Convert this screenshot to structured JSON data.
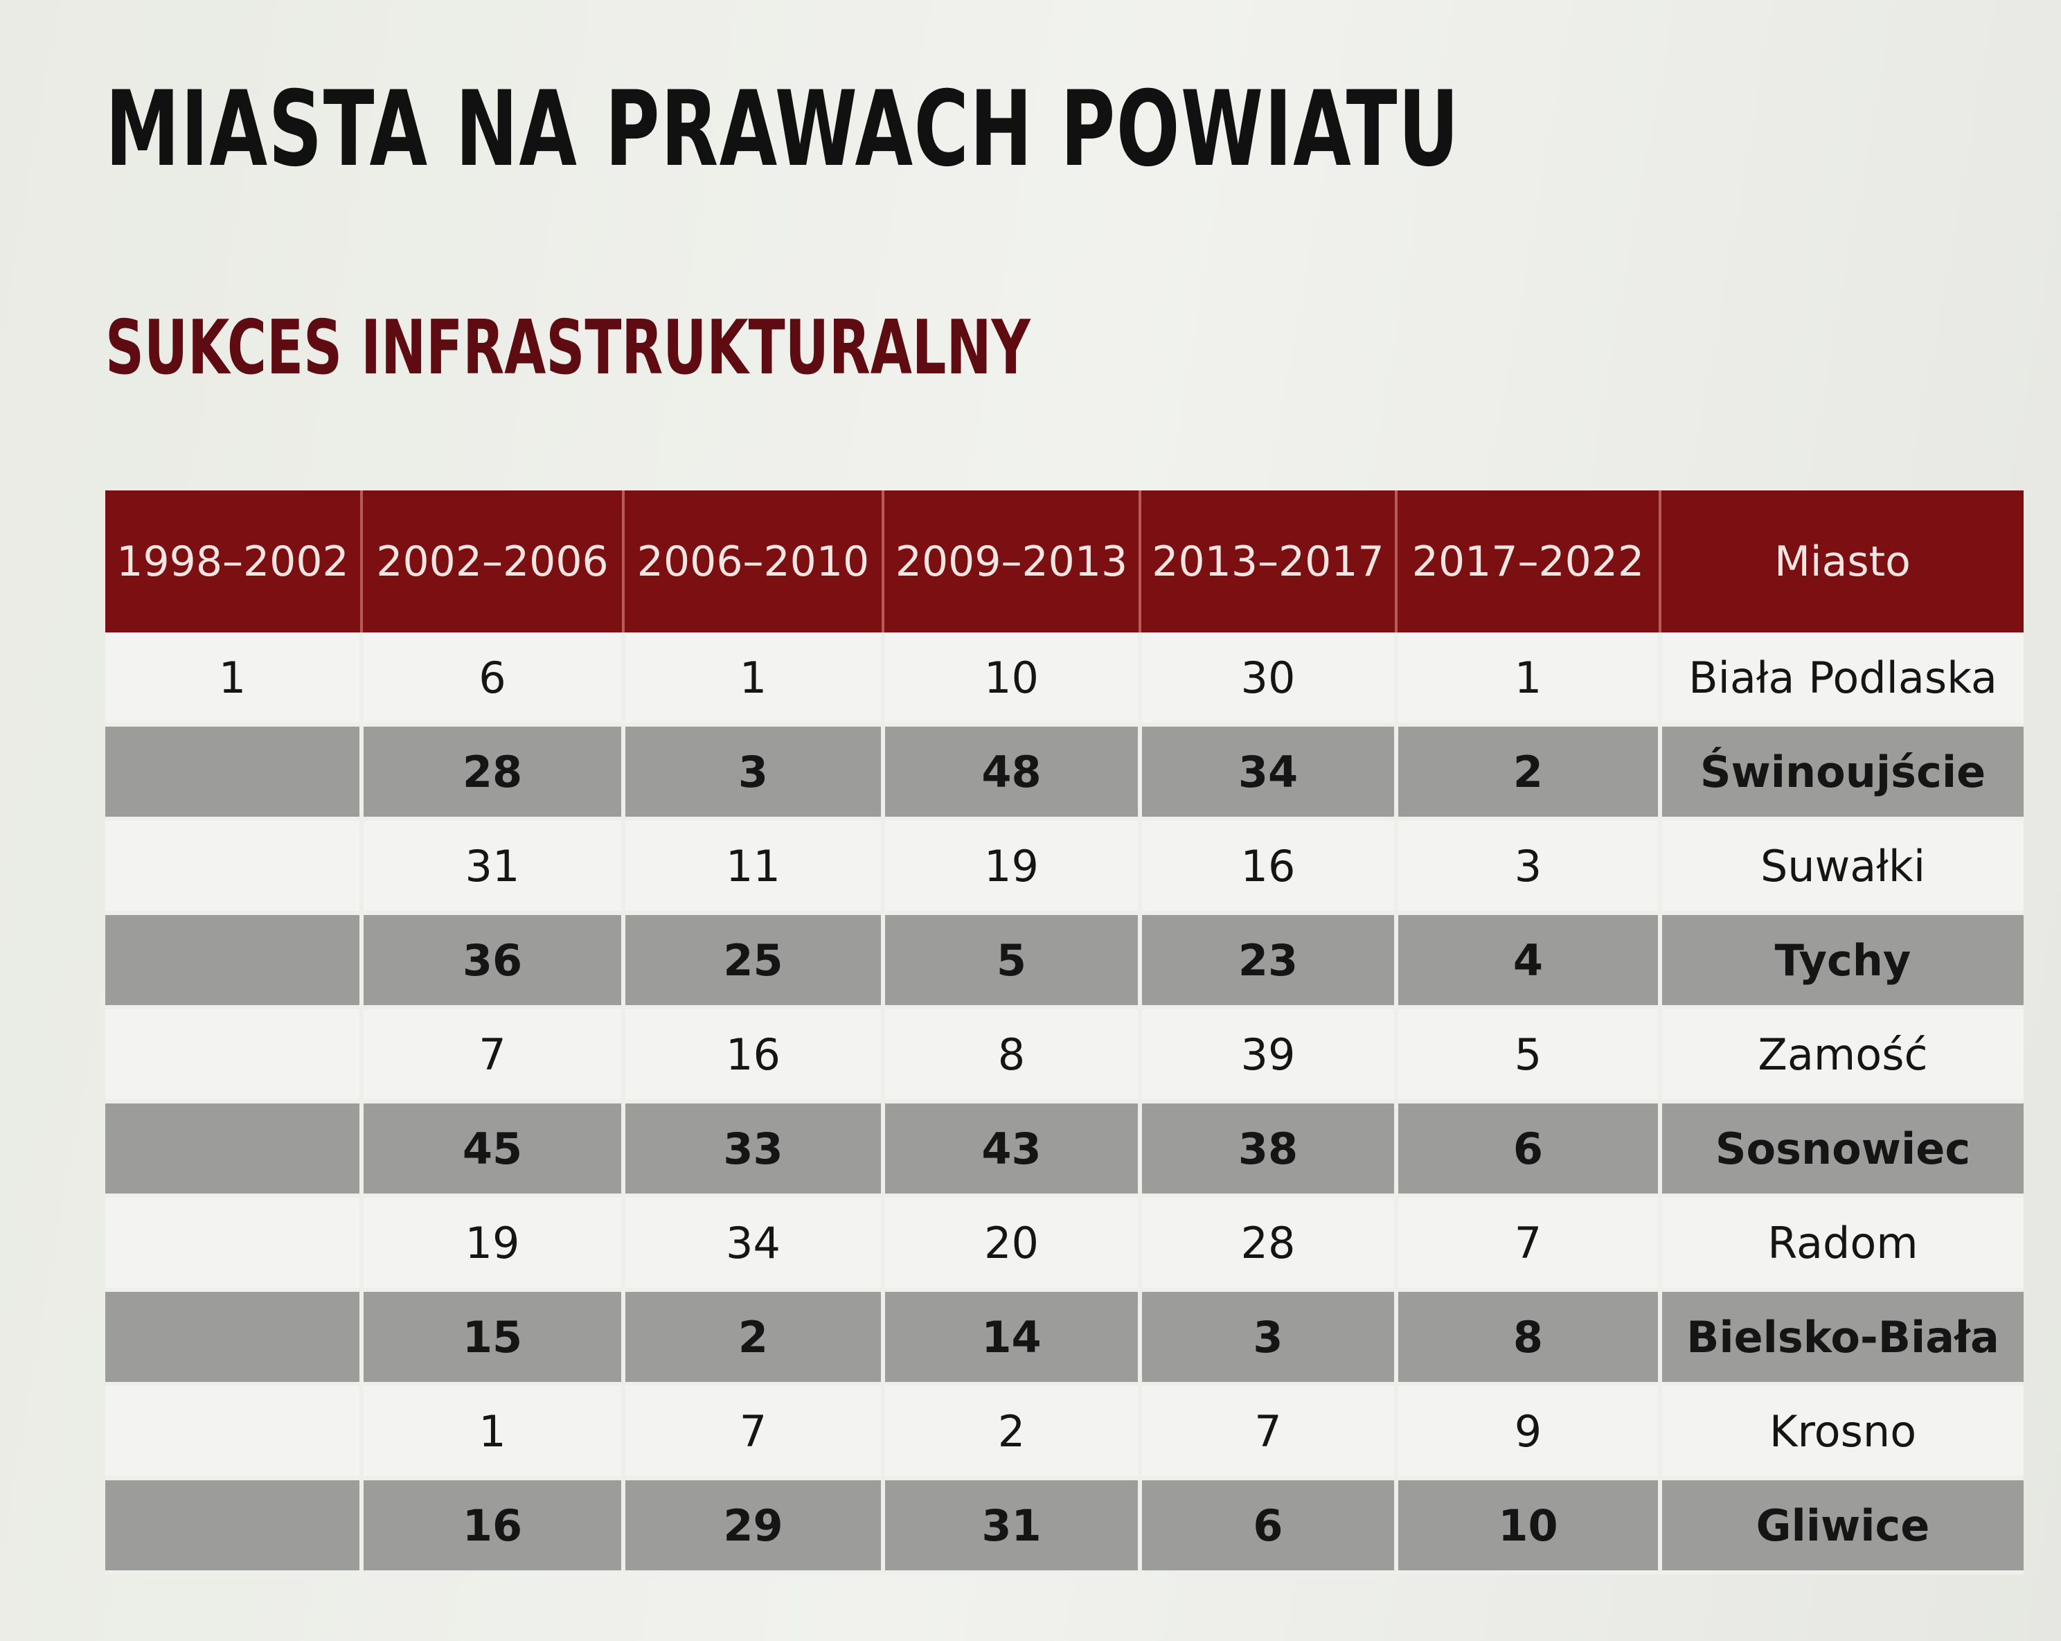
{
  "title": "MIASTA NA PRAWACH POWIATU",
  "subtitle": "SUKCES INFRASTRUKTURALNY",
  "colors": {
    "header_bg": "#7c0f12",
    "subtitle": "#5e0c12",
    "shaded_row": "#9c9c9a"
  },
  "table": {
    "headers": [
      "1998–2002",
      "2002–2006",
      "2006–2010",
      "2009–2013",
      "2013–2017",
      "2017–2022",
      "Miasto"
    ],
    "rows": [
      [
        "1",
        "6",
        "1",
        "10",
        "30",
        "1",
        "Biała Podlaska"
      ],
      [
        "",
        "28",
        "3",
        "48",
        "34",
        "2",
        "Świnoujście"
      ],
      [
        "",
        "31",
        "11",
        "19",
        "16",
        "3",
        "Suwałki"
      ],
      [
        "",
        "36",
        "25",
        "5",
        "23",
        "4",
        "Tychy"
      ],
      [
        "",
        "7",
        "16",
        "8",
        "39",
        "5",
        "Zamość"
      ],
      [
        "",
        "45",
        "33",
        "43",
        "38",
        "6",
        "Sosnowiec"
      ],
      [
        "",
        "19",
        "34",
        "20",
        "28",
        "7",
        "Radom"
      ],
      [
        "",
        "15",
        "2",
        "14",
        "3",
        "8",
        "Bielsko-Biała"
      ],
      [
        "",
        "1",
        "7",
        "2",
        "7",
        "9",
        "Krosno"
      ],
      [
        "",
        "16",
        "29",
        "31",
        "6",
        "10",
        "Gliwice"
      ]
    ]
  }
}
